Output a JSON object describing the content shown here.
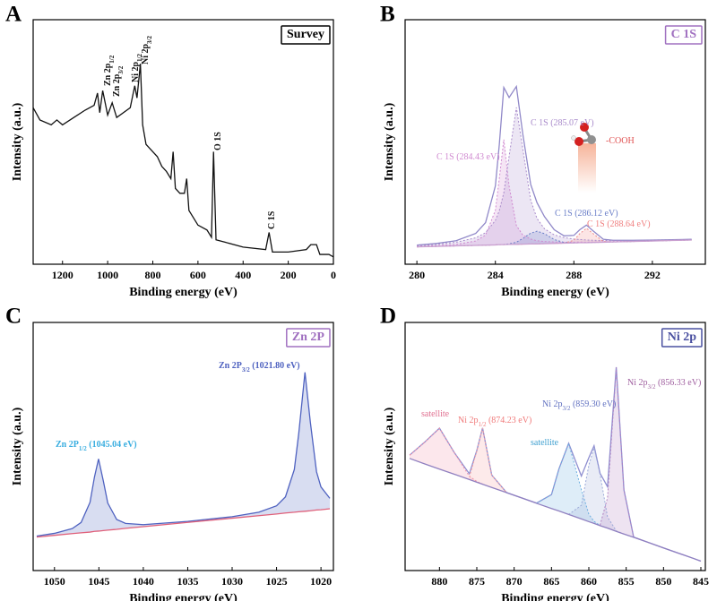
{
  "chart_data": [
    {
      "type": "line",
      "panel": "A",
      "title": "Survey",
      "title_color": "#000000",
      "xlabel": "Binding energy (eV)",
      "ylabel": "Intensity (a.u.)",
      "xlim": [
        1330,
        0
      ],
      "xticks": [
        1200,
        1000,
        800,
        600,
        400,
        200,
        0
      ],
      "ylim": [
        0,
        100
      ],
      "x": [
        1330,
        1300,
        1250,
        1225,
        1200,
        1150,
        1100,
        1060,
        1045,
        1035,
        1022,
        1000,
        980,
        960,
        900,
        880,
        870,
        855,
        845,
        830,
        800,
        780,
        760,
        740,
        720,
        710,
        700,
        680,
        660,
        650,
        640,
        600,
        560,
        540,
        531,
        520,
        480,
        400,
        300,
        285,
        270,
        200,
        120,
        100,
        75,
        60,
        20,
        0
      ],
      "series": [
        {
          "color": "#111111",
          "values": [
            64,
            59,
            57,
            59,
            57,
            60,
            63,
            65,
            70,
            62,
            71,
            61,
            66,
            60,
            64,
            73,
            68,
            82,
            57,
            49,
            46,
            44,
            40,
            38,
            35,
            46,
            31,
            29,
            29,
            35,
            22,
            16,
            14,
            11,
            46,
            10,
            9,
            7,
            6,
            13,
            5,
            5,
            6,
            8,
            8,
            4,
            4,
            3
          ]
        }
      ],
      "annotations": [
        {
          "text": "Zn 2p",
          "sub": "1/2",
          "color": "#111111"
        },
        {
          "text": "Zn 2p",
          "sub": "3/2",
          "color": "#111111"
        },
        {
          "text": "Ni 2p",
          "sub": "1/2",
          "color": "#111111"
        },
        {
          "text": "Ni 2p",
          "sub": "3/2",
          "color": "#111111"
        },
        {
          "text": "O 1S",
          "color": "#111111"
        },
        {
          "text": "C 1S",
          "color": "#111111"
        }
      ]
    },
    {
      "type": "line",
      "panel": "B",
      "title": "C 1S",
      "title_color": "#a070c0",
      "xlabel": "Binding energy (eV)",
      "ylabel": "Intensity (a.u.)",
      "xlim": [
        279.4,
        294.7
      ],
      "xticks": [
        280,
        284,
        288,
        292
      ],
      "ylim": [
        0,
        100
      ],
      "x": [
        280,
        281,
        282,
        283,
        283.5,
        284,
        284.2,
        284.43,
        284.7,
        285.07,
        285.4,
        285.8,
        286.12,
        286.5,
        287,
        287.5,
        288,
        288.3,
        288.64,
        289,
        289.5,
        290,
        291,
        292,
        293,
        294
      ],
      "series": [
        {
          "color": "#9088c8",
          "values": [
            7.8,
            8.5,
            9.6,
            12.6,
            17.0,
            32.0,
            48.9,
            72.3,
            68.2,
            72.7,
            53.1,
            32.6,
            25.2,
            19.5,
            14.1,
            11.6,
            11.8,
            14.1,
            16.0,
            13.5,
            10.2,
            9.8,
            9.8,
            9.9,
            10.0,
            10.2
          ]
        },
        {
          "color": "#d08ad0",
          "fill": true,
          "style": "dotted",
          "values": [
            7.3,
            7.6,
            8.1,
            9.5,
            11.9,
            22.0,
            35.0,
            51.0,
            31.9,
            15.8,
            11.9,
            10.3,
            9.6,
            9.3,
            9.1,
            9.0,
            9.0,
            9.1,
            9.0,
            9.1,
            9.2,
            9.3,
            9.4,
            9.6,
            9.8,
            10.0
          ]
        },
        {
          "color": "#a98bcb",
          "fill": true,
          "style": "dotted",
          "values": [
            7.6,
            8.1,
            9.0,
            10.8,
            12.9,
            17.9,
            21.9,
            29.2,
            44.2,
            64.1,
            47.1,
            26.2,
            18.7,
            14.5,
            12.0,
            10.9,
            10.3,
            10.1,
            9.9,
            9.8,
            9.7,
            9.7,
            9.7,
            9.8,
            9.9,
            10.1
          ]
        },
        {
          "color": "#6b7fc8",
          "fill": true,
          "style": "dotted",
          "values": [
            7.1,
            7.3,
            7.5,
            7.7,
            7.8,
            7.9,
            8.0,
            8.1,
            8.3,
            9.0,
            10.5,
            12.7,
            13.5,
            12.5,
            10.1,
            8.9,
            8.7,
            8.8,
            8.8,
            8.9,
            9.0,
            9.1,
            9.3,
            9.5,
            9.7,
            9.9
          ]
        },
        {
          "color": "#f08a8a",
          "fill": true,
          "style": "dotted",
          "values": [
            7.1,
            7.3,
            7.5,
            7.7,
            7.8,
            7.9,
            8.0,
            8.0,
            8.1,
            8.1,
            8.2,
            8.3,
            8.3,
            8.4,
            8.5,
            8.6,
            9.8,
            12.5,
            14.7,
            12.4,
            9.3,
            9.1,
            9.3,
            9.5,
            9.7,
            9.9
          ]
        },
        {
          "color": "#c9a0d0",
          "baseline": true,
          "values": [
            7.1,
            7.3,
            7.5,
            7.7,
            7.8,
            7.9,
            8.0,
            8.0,
            8.1,
            8.1,
            8.2,
            8.3,
            8.3,
            8.4,
            8.5,
            8.6,
            8.7,
            8.8,
            8.8,
            8.9,
            9.0,
            9.1,
            9.3,
            9.5,
            9.7,
            9.9
          ]
        }
      ],
      "annotations": [
        {
          "text": "C 1S (285.07 eV)",
          "color": "#a98bcb"
        },
        {
          "text": "C 1S (284.43 eV)",
          "color": "#d08ad0"
        },
        {
          "text": "C 1S (286.12 eV)",
          "color": "#6b7fc8"
        },
        {
          "text": "C 1S (288.64 eV)",
          "color": "#f08080"
        },
        {
          "text": "-COOH",
          "color": "#e05050"
        }
      ]
    },
    {
      "type": "line",
      "panel": "C",
      "title": "Zn 2P",
      "title_color": "#a070c0",
      "xlabel": "Binding energy (eV)",
      "ylabel": "Intensity (a.u.)",
      "xlim": [
        1052.4,
        1018.6
      ],
      "xticks": [
        1050,
        1045,
        1040,
        1035,
        1030,
        1025,
        1020
      ],
      "ylim": [
        0,
        100
      ],
      "x": [
        1052,
        1050,
        1048,
        1047,
        1046,
        1045.5,
        1045.04,
        1044.5,
        1044,
        1043,
        1042,
        1040,
        1035,
        1030,
        1027,
        1025,
        1024,
        1023,
        1022.5,
        1021.8,
        1021.2,
        1020.5,
        1020,
        1019
      ],
      "series": [
        {
          "color": "#4f62c0",
          "fill": true,
          "values": [
            13.9,
            15.0,
            16.9,
            19.4,
            27.5,
            37.7,
            45.0,
            36.1,
            27.2,
            20.6,
            19.0,
            18.5,
            19.8,
            21.7,
            23.5,
            26.1,
            29.7,
            40.7,
            55.3,
            79.9,
            59.9,
            39.8,
            33.7,
            29.1
          ]
        },
        {
          "color": "#e0607a",
          "baseline": true,
          "values": [
            13.5,
            14.2,
            14.9,
            15.2,
            15.5,
            15.8,
            15.9,
            16.1,
            16.3,
            16.6,
            17.0,
            17.7,
            19.4,
            21.1,
            22.1,
            22.8,
            23.2,
            23.5,
            23.7,
            23.9,
            24.1,
            24.4,
            24.5,
            24.9
          ]
        }
      ],
      "annotations": [
        {
          "text": "Zn 2P",
          "sub": "3/2",
          "suffix": " (1021.80 eV)",
          "color": "#4f62c0"
        },
        {
          "text": "Zn 2P",
          "sub": "1/2",
          "suffix": " (1045.04 eV)",
          "color": "#3aaee0"
        }
      ]
    },
    {
      "type": "line",
      "panel": "D",
      "title": "Ni 2p",
      "title_color": "#4a50a0",
      "xlabel": "Binding energy (eV)",
      "ylabel": "Intensity (a.u.)",
      "xlim": [
        884.6,
        844.4
      ],
      "xticks": [
        880,
        875,
        870,
        865,
        860,
        855,
        850,
        845
      ],
      "ylim": [
        0,
        100
      ],
      "x": [
        884,
        882,
        880,
        878,
        876,
        875,
        874.23,
        873,
        871,
        869,
        867,
        865,
        864,
        862.7,
        861,
        860,
        859.3,
        858.5,
        857.5,
        856.33,
        855.3,
        854,
        852,
        850,
        848,
        846,
        845
      ],
      "series": [
        {
          "color": "#8e8ed0",
          "values": [
            46.5,
            51.7,
            57.4,
            47.5,
            39.0,
            48.4,
            57.5,
            38.5,
            31.4,
            29.3,
            27.2,
            30.6,
            41.0,
            51.3,
            38.1,
            45.5,
            50.3,
            39.2,
            33.8,
            82.0,
            32.5,
            13.5,
            11.3,
            9.1,
            7.0,
            4.9,
            3.8
          ]
        },
        {
          "color": "#f090a8",
          "fill": true,
          "style": "dotted",
          "values": [
            46.5,
            51.7,
            57.4,
            47.5,
            38.0,
            35.9,
            34.9,
            null,
            null,
            null,
            null,
            null,
            null,
            null,
            null,
            null,
            null,
            null,
            null,
            null,
            null,
            null,
            null,
            null,
            null,
            null,
            null
          ]
        },
        {
          "color": "#f8a0a0",
          "fill": true,
          "style": "dotted",
          "values": [
            null,
            null,
            null,
            null,
            37.7,
            48.1,
            57.4,
            38.5,
            31.4,
            null,
            null,
            null,
            null,
            null,
            null,
            null,
            null,
            null,
            null,
            null,
            null,
            null,
            null,
            null,
            null,
            null,
            null
          ]
        },
        {
          "color": "#6aaee0",
          "fill": true,
          "style": "dotted",
          "values": [
            null,
            null,
            null,
            null,
            null,
            null,
            null,
            null,
            null,
            null,
            27.2,
            30.6,
            41.0,
            51.3,
            32.6,
            22.7,
            19.8,
            18.2,
            null,
            null,
            null,
            null,
            null,
            null,
            null,
            null,
            null
          ]
        },
        {
          "color": "#9aa8d8",
          "fill": true,
          "style": "dotted",
          "values": [
            null,
            null,
            null,
            null,
            null,
            null,
            null,
            null,
            null,
            null,
            null,
            null,
            null,
            22.6,
            26.3,
            42.5,
            49.5,
            38.9,
            21.6,
            16.0,
            14.7,
            null,
            null,
            null,
            null,
            null,
            null
          ]
        },
        {
          "color": "#b080c0",
          "fill": true,
          "style": "dotted",
          "values": [
            null,
            null,
            null,
            null,
            null,
            null,
            null,
            null,
            null,
            null,
            null,
            null,
            null,
            null,
            null,
            null,
            null,
            18.3,
            29.3,
            81.8,
            32.5,
            13.5,
            11.3,
            null,
            null,
            null,
            null
          ]
        },
        {
          "color": "#9080c0",
          "baseline": true,
          "values": [
            45.2,
            43.0,
            40.9,
            38.8,
            36.7,
            35.6,
            34.8,
            33.5,
            31.4,
            29.3,
            27.1,
            25.0,
            24.0,
            22.6,
            20.8,
            19.7,
            19.0,
            18.1,
            17.1,
            15.8,
            14.7,
            13.4,
            11.3,
            9.1,
            7.0,
            4.9,
            3.8
          ]
        }
      ],
      "annotations": [
        {
          "text": "satellite",
          "color": "#e07090"
        },
        {
          "text": "Ni 2p",
          "sub": "1/2",
          "suffix": " (874.23 eV)",
          "color": "#f07a7a"
        },
        {
          "text": "Ni 2p",
          "sub": "3/2",
          "suffix": " (859.30 eV)",
          "color": "#6070c0"
        },
        {
          "text": "Ni 2p",
          "sub": "3/2",
          "suffix": " (856.33 eV)",
          "color": "#a060a0"
        },
        {
          "text": "satellite",
          "color": "#40a0d0"
        }
      ]
    }
  ]
}
